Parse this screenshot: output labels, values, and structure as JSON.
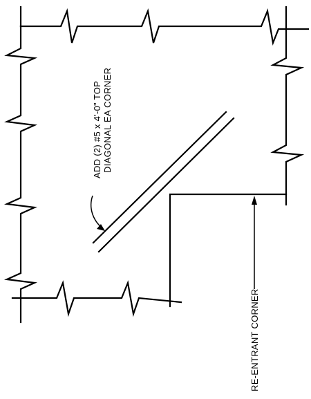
{
  "note": {
    "line1": "ADD (2) #5 x 4'-0\" TOP",
    "line2": "DIAGONAL EA CORNER"
  },
  "callout": {
    "label": "RE-ENTRANT CORNER"
  }
}
